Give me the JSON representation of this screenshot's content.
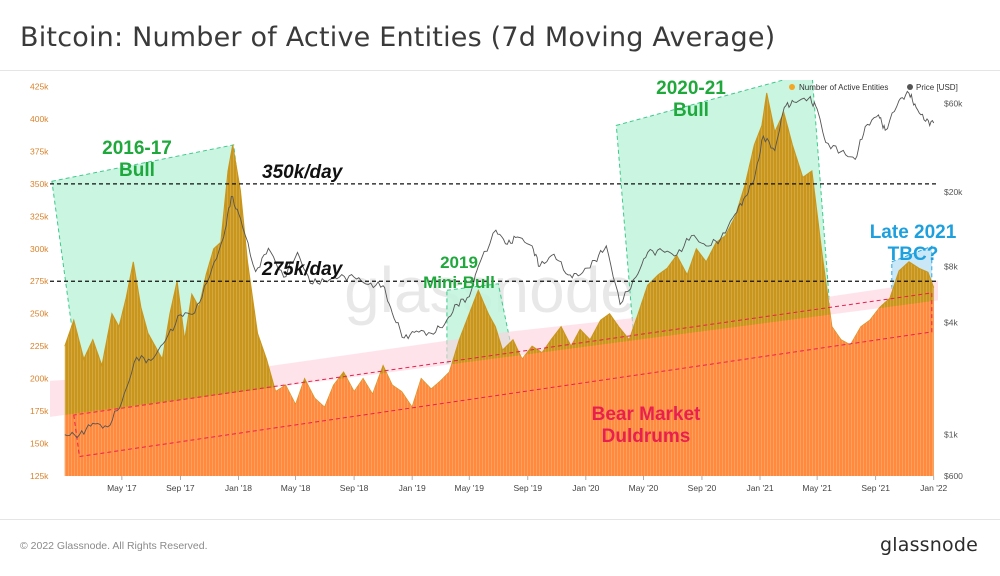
{
  "title": "Bitcoin: Number of Active Entities (7d Moving Average)",
  "footer": {
    "copyright": "© 2022 Glassnode. All Rights Reserved.",
    "brand": "glassnode"
  },
  "watermark": "glassnode",
  "colors": {
    "entities": "#f5a623",
    "entities_dark": "#c9951a",
    "price": "#555555",
    "bull_fill": "#bff3dc",
    "bull_border": "#3ec98a",
    "bear_fill": "#ff8a3d",
    "bear_border": "#e8204f",
    "bear_excursion": "#ffd1dc",
    "late_fill": "#bfe3f5",
    "late_border": "#2aa8e0",
    "green_text": "#1fa83c",
    "red_text": "#e8204f",
    "blue_text": "#1ea0de",
    "axis_left": "#d9822b",
    "axis_right": "#555555"
  },
  "chart_data": {
    "type": "area",
    "legend_position": "top-right",
    "grid": false,
    "series": [
      {
        "name": "Number of Active Entities",
        "axis": "left",
        "x": [
          "2017-01-01",
          "2017-01-20",
          "2017-02-10",
          "2017-03-01",
          "2017-03-20",
          "2017-04-10",
          "2017-04-25",
          "2017-05-10",
          "2017-05-25",
          "2017-06-10",
          "2017-06-25",
          "2017-07-10",
          "2017-07-25",
          "2017-08-10",
          "2017-08-25",
          "2017-09-10",
          "2017-09-25",
          "2017-10-10",
          "2017-10-25",
          "2017-11-10",
          "2017-11-25",
          "2017-12-10",
          "2017-12-20",
          "2018-01-05",
          "2018-01-20",
          "2018-02-10",
          "2018-03-01",
          "2018-03-20",
          "2018-04-10",
          "2018-05-01",
          "2018-05-20",
          "2018-06-10",
          "2018-07-01",
          "2018-07-20",
          "2018-08-10",
          "2018-09-01",
          "2018-09-20",
          "2018-10-10",
          "2018-11-01",
          "2018-11-20",
          "2018-12-10",
          "2019-01-01",
          "2019-01-20",
          "2019-02-10",
          "2019-03-01",
          "2019-03-20",
          "2019-04-10",
          "2019-05-01",
          "2019-05-20",
          "2019-06-10",
          "2019-06-25",
          "2019-07-10",
          "2019-08-01",
          "2019-08-20",
          "2019-09-10",
          "2019-10-01",
          "2019-10-20",
          "2019-11-10",
          "2019-12-01",
          "2019-12-20",
          "2020-01-10",
          "2020-02-01",
          "2020-02-20",
          "2020-03-10",
          "2020-04-01",
          "2020-04-20",
          "2020-05-10",
          "2020-06-01",
          "2020-06-20",
          "2020-07-10",
          "2020-08-01",
          "2020-08-20",
          "2020-09-10",
          "2020-10-01",
          "2020-10-20",
          "2020-11-10",
          "2020-12-01",
          "2020-12-20",
          "2021-01-05",
          "2021-01-15",
          "2021-02-01",
          "2021-02-20",
          "2021-03-10",
          "2021-04-01",
          "2021-04-20",
          "2021-05-10",
          "2021-06-01",
          "2021-06-20",
          "2021-07-10",
          "2021-08-01",
          "2021-08-20",
          "2021-09-10",
          "2021-10-01",
          "2021-10-20",
          "2021-11-10",
          "2021-12-01",
          "2021-12-20",
          "2022-01-01"
        ],
        "values": [
          225000,
          245000,
          215000,
          230000,
          210000,
          250000,
          240000,
          262000,
          290000,
          255000,
          235000,
          225000,
          215000,
          250000,
          275000,
          230000,
          265000,
          255000,
          280000,
          300000,
          305000,
          360000,
          380000,
          345000,
          290000,
          235000,
          215000,
          190000,
          195000,
          180000,
          200000,
          185000,
          178000,
          195000,
          205000,
          190000,
          200000,
          188000,
          210000,
          195000,
          190000,
          178000,
          200000,
          192000,
          198000,
          205000,
          230000,
          250000,
          268000,
          250000,
          240000,
          222000,
          230000,
          215000,
          225000,
          220000,
          230000,
          240000,
          225000,
          238000,
          230000,
          245000,
          250000,
          240000,
          230000,
          250000,
          272000,
          280000,
          285000,
          295000,
          280000,
          300000,
          290000,
          305000,
          310000,
          325000,
          350000,
          380000,
          395000,
          420000,
          390000,
          405000,
          380000,
          355000,
          360000,
          300000,
          240000,
          230000,
          226000,
          240000,
          245000,
          255000,
          262000,
          283000,
          290000,
          285000,
          282000,
          270000
        ]
      },
      {
        "name": "Price [USD]",
        "axis": "right",
        "x": [
          "2017-01-01",
          "2017-02-01",
          "2017-03-01",
          "2017-04-01",
          "2017-05-01",
          "2017-06-01",
          "2017-07-01",
          "2017-08-01",
          "2017-09-01",
          "2017-10-01",
          "2017-11-01",
          "2017-12-01",
          "2017-12-17",
          "2018-01-05",
          "2018-02-06",
          "2018-03-05",
          "2018-04-06",
          "2018-05-05",
          "2018-06-01",
          "2018-07-01",
          "2018-08-01",
          "2018-09-01",
          "2018-10-01",
          "2018-11-01",
          "2018-11-20",
          "2018-12-15",
          "2019-01-10",
          "2019-02-10",
          "2019-03-10",
          "2019-04-05",
          "2019-05-01",
          "2019-05-20",
          "2019-06-26",
          "2019-07-20",
          "2019-08-10",
          "2019-09-10",
          "2019-09-26",
          "2019-10-26",
          "2019-11-25",
          "2019-12-20",
          "2020-01-20",
          "2020-02-13",
          "2020-03-13",
          "2020-04-15",
          "2020-05-10",
          "2020-06-10",
          "2020-07-10",
          "2020-08-10",
          "2020-09-10",
          "2020-10-10",
          "2020-11-10",
          "2020-12-01",
          "2020-12-20",
          "2021-01-08",
          "2021-02-01",
          "2021-02-21",
          "2021-03-13",
          "2021-04-14",
          "2021-05-01",
          "2021-05-19",
          "2021-06-20",
          "2021-07-20",
          "2021-08-10",
          "2021-09-07",
          "2021-09-21",
          "2021-10-20",
          "2021-11-10",
          "2021-11-25",
          "2021-12-15",
          "2022-01-01"
        ],
        "values": [
          1000,
          1000,
          1150,
          1100,
          1500,
          2600,
          2500,
          3200,
          4400,
          4500,
          7000,
          11500,
          19000,
          14500,
          7500,
          10000,
          7000,
          9500,
          6500,
          6700,
          7000,
          7000,
          6400,
          6300,
          4500,
          3300,
          3600,
          3500,
          3900,
          5000,
          5500,
          8000,
          12500,
          10500,
          11500,
          10300,
          8000,
          9300,
          7200,
          7200,
          8600,
          10300,
          5000,
          7000,
          9500,
          9700,
          9200,
          11700,
          10300,
          11200,
          15300,
          19000,
          23500,
          40000,
          33500,
          57000,
          61000,
          64000,
          56000,
          37000,
          33000,
          30000,
          45000,
          52000,
          43000,
          62000,
          68000,
          57000,
          48000,
          47000
        ]
      }
    ],
    "y_left": {
      "range": [
        125000,
        430000
      ],
      "ticks": [
        "425k",
        "400k",
        "375k",
        "350k",
        "325k",
        "300k",
        "275k",
        "250k",
        "225k",
        "200k",
        "175k",
        "150k",
        "125k"
      ]
    },
    "y_right": {
      "scale": "log",
      "range": [
        600,
        80000
      ],
      "ticks": [
        "$60k",
        "$20k",
        "$8k",
        "$4k",
        "$1k",
        "$600"
      ]
    },
    "x_axis": {
      "range": [
        "2016-12-01",
        "2022-01-10"
      ],
      "ticks": [
        "May '17",
        "Sep '17",
        "Jan '18",
        "May '18",
        "Sep '18",
        "Jan '19",
        "May '19",
        "Sep '19",
        "Jan '20",
        "May '20",
        "Sep '20",
        "Jan '21",
        "May '21",
        "Sep '21",
        "Jan '22"
      ]
    },
    "reference_lines": [
      {
        "value": 350000,
        "label": "350k/day"
      },
      {
        "value": 275000,
        "label": "275k/day"
      }
    ],
    "annotations": {
      "bull_2016": {
        "line1": "2016-17",
        "line2": "Bull"
      },
      "minibull_2019": {
        "line1": "2019",
        "line2": "Mini-Bull"
      },
      "bull_2020": {
        "line1": "2020-21",
        "line2": "Bull"
      },
      "late_2021": {
        "line1": "Late 2021",
        "line2": "TBC?"
      },
      "bear": {
        "line1": "Bear Market",
        "line2": "Duldrums"
      }
    }
  }
}
